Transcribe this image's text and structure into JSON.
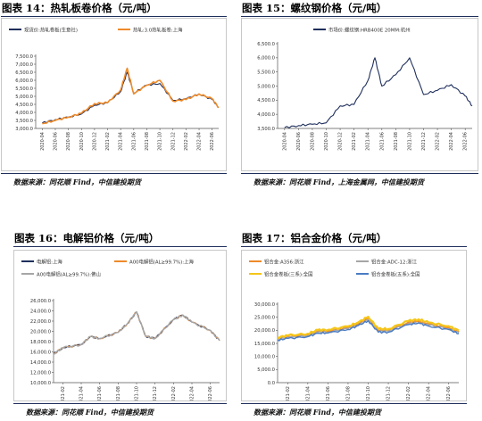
{
  "colors": {
    "heading_rule": "#1f2f5c"
  },
  "charts": [
    {
      "title": "图表 14：热轧板卷价格（元/吨）",
      "source": "数据来源：同花顺 Find，中信建投期货",
      "legend": [
        "现货价:热轧卷板(生意社)",
        "热轧:3.0热轧板卷:上海"
      ],
      "y_ticks": [
        "7,500.0",
        "7,000.0",
        "6,500.0",
        "6,000.0",
        "5,500.0",
        "5,000.0",
        "4,500.0",
        "4,000.0",
        "3,500.0",
        "3,000.0"
      ],
      "x_ticks": [
        "2020-04",
        "2020-06",
        "2020-08",
        "2020-10",
        "2020-12",
        "2021-02",
        "2021-04",
        "2021-06",
        "2021-08",
        "2021-10",
        "2021-12",
        "2022-02",
        "2022-04",
        "2022-06"
      ]
    },
    {
      "title": "图表 15：螺纹钢价格（元/吨）",
      "source": "数据来源：同花顺 Find，上海金属网，中信建投期货",
      "legend": [
        "市场价:螺纹钢:HRB400E 20MM:杭州"
      ],
      "y_ticks": [
        "6,500.0",
        "6,000.0",
        "5,500.0",
        "5,000.0",
        "4,500.0",
        "4,000.0",
        "3,500.0"
      ],
      "x_ticks": [
        "2020-04",
        "2020-06",
        "2020-08",
        "2020-10",
        "2020-12",
        "2021-02",
        "2021-04",
        "2021-06",
        "2021-08",
        "2021-10",
        "2021-12",
        "2022-02",
        "2022-04",
        "2022-06"
      ]
    },
    {
      "title": "图表 16：电解铝价格（元/吨）",
      "source": "数据来源：同花顺 Find，中信建投期货",
      "legend": [
        "电解铝:上海",
        "A00电解铝(AL≥99.7%):上海",
        "A00电解铝(AL≥99.7%):佛山"
      ],
      "y_ticks": [
        "26,000.0",
        "24,000.0",
        "22,000.0",
        "20,000.0",
        "18,000.0",
        "16,000.0",
        "14,000.0",
        "12,000.0",
        "10,000.0"
      ],
      "x_ticks": [
        "2021-02",
        "2021-04",
        "2021-06",
        "2021-08",
        "2021-10",
        "2021-12",
        "2022-02",
        "2022-04",
        "2022-06"
      ]
    },
    {
      "title": "图表 17：铝合金价格（元/吨）",
      "source": "数据来源：同花顺 Find，中信建投期货",
      "legend": [
        "铝合金:A356:浙江",
        "铝合金:ADC-12:浙江",
        "铝合金卷板(三系):全国",
        "铝合金卷板(五系):全国"
      ],
      "y_ticks": [
        "30,000.0",
        "25,000.0",
        "20,000.0",
        "15,000.0",
        "10,000.0",
        "5,000.0",
        "0.0"
      ],
      "x_ticks": [
        "2021-02",
        "2021-04",
        "2021-06",
        "2021-08",
        "2021-10",
        "2021-12",
        "2022-02",
        "2022-04",
        "2022-06"
      ]
    }
  ],
  "chart_data": [
    {
      "type": "line",
      "title": "图表 14：热轧板卷价格（元/吨）",
      "ylim": [
        3000,
        7500
      ],
      "x": [
        "2020-04",
        "2020-06",
        "2020-08",
        "2020-10",
        "2020-12",
        "2021-02",
        "2021-04",
        "2021-05",
        "2021-06",
        "2021-08",
        "2021-10",
        "2021-12",
        "2022-02",
        "2022-04",
        "2022-06",
        "2022-07"
      ],
      "series": [
        {
          "name": "现货价:热轧卷板(生意社)",
          "color": "#1f2f5c",
          "values": [
            3350,
            3550,
            3700,
            3900,
            4450,
            4600,
            5300,
            6500,
            5200,
            5700,
            5800,
            4750,
            4850,
            5150,
            4800,
            4300
          ]
        },
        {
          "name": "热轧:3.0热轧板卷:上海",
          "color": "#ee8a2a",
          "values": [
            3300,
            3500,
            3700,
            3950,
            4550,
            4600,
            5400,
            6750,
            5150,
            5700,
            6000,
            4700,
            4800,
            5150,
            4850,
            4300
          ]
        }
      ]
    },
    {
      "type": "line",
      "title": "图表 15：螺纹钢价格（元/吨）",
      "ylim": [
        3500,
        6500
      ],
      "x": [
        "2020-04",
        "2020-06",
        "2020-08",
        "2020-10",
        "2020-12",
        "2021-02",
        "2021-04",
        "2021-05",
        "2021-06",
        "2021-08",
        "2021-10",
        "2021-12",
        "2022-02",
        "2022-04",
        "2022-06",
        "2022-07"
      ],
      "series": [
        {
          "name": "市场价:螺纹钢:HRB400E 20MM:杭州",
          "color": "#1f2f5c",
          "values": [
            3530,
            3600,
            3650,
            3700,
            4300,
            4350,
            5200,
            6000,
            5000,
            5400,
            6000,
            4700,
            4850,
            5050,
            4650,
            4300
          ]
        }
      ]
    },
    {
      "type": "line",
      "title": "图表 16：电解铝价格（元/吨）",
      "ylim": [
        10000,
        26000
      ],
      "x": [
        "2021-01",
        "2021-02",
        "2021-04",
        "2021-05",
        "2021-06",
        "2021-08",
        "2021-09",
        "2021-10",
        "2021-11",
        "2021-12",
        "2022-02",
        "2022-03",
        "2022-04",
        "2022-06",
        "2022-07"
      ],
      "series": [
        {
          "name": "电解铝:上海",
          "color": "#1f2f5c",
          "values": [
            15600,
            16800,
            17400,
            19000,
            18600,
            19800,
            21500,
            23800,
            19000,
            18600,
            22300,
            23200,
            21800,
            20200,
            18200
          ]
        },
        {
          "name": "A00电解铝(AL≥99.7%):上海",
          "color": "#ee8a2a",
          "values": [
            15600,
            16800,
            17400,
            19000,
            18600,
            19800,
            21500,
            23800,
            19000,
            18600,
            22300,
            23200,
            21800,
            20200,
            18200
          ]
        },
        {
          "name": "A00电解铝(AL≥99.7%):佛山",
          "color": "#a6a6a6",
          "values": [
            15600,
            16800,
            17400,
            19000,
            18600,
            19800,
            21500,
            23800,
            19000,
            18600,
            22300,
            23200,
            21800,
            20200,
            18200
          ]
        }
      ]
    },
    {
      "type": "line",
      "title": "图表 17：铝合金价格（元/吨）",
      "ylim": [
        0,
        30000
      ],
      "x": [
        "2021-01",
        "2021-02",
        "2021-04",
        "2021-05",
        "2021-06",
        "2021-08",
        "2021-09",
        "2021-10",
        "2021-11",
        "2021-12",
        "2022-02",
        "2022-03",
        "2022-04",
        "2022-06",
        "2022-07"
      ],
      "series": [
        {
          "name": "铝合金:A356:浙江",
          "color": "#ee8a2a",
          "values": [
            16800,
            17500,
            18200,
            19600,
            19700,
            21000,
            22500,
            24600,
            20000,
            20000,
            23000,
            23500,
            22400,
            21000,
            19300
          ]
        },
        {
          "name": "铝合金:ADC-12:浙江",
          "color": "#a6a6a6",
          "values": [
            16500,
            17200,
            17900,
            19200,
            19300,
            20600,
            22000,
            24000,
            19600,
            19700,
            22500,
            23000,
            22000,
            20600,
            19000
          ]
        },
        {
          "name": "铝合金卷板(三系):全国",
          "color": "#f5c518",
          "values": [
            17300,
            18000,
            18700,
            20100,
            20200,
            21500,
            23000,
            25200,
            20600,
            20500,
            23600,
            24200,
            23000,
            21600,
            19900
          ]
        },
        {
          "name": "铝合金卷板(五系):全国",
          "color": "#4a7cc4",
          "values": [
            16200,
            16900,
            17600,
            18900,
            19000,
            20300,
            21800,
            23700,
            19300,
            19300,
            22200,
            22800,
            21600,
            20300,
            18700
          ]
        }
      ]
    }
  ]
}
